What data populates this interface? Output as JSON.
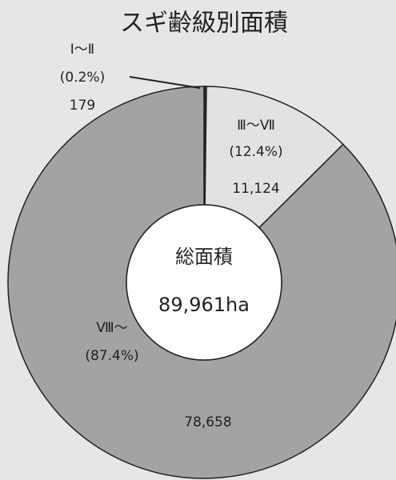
{
  "chart_data": {
    "type": "donut",
    "title": "スギ齢級別面積",
    "categories": [
      "Ⅰ～Ⅱ",
      "Ⅲ～Ⅶ",
      "Ⅷ～"
    ],
    "values": [
      179,
      11124,
      78658
    ],
    "value_labels": [
      "179",
      "11,124",
      "78,658"
    ],
    "percent_labels": [
      "(0.2%)",
      "(12.4%)",
      "(87.4%)"
    ],
    "colors": [
      "#2a2a2a",
      "#e2e2e2",
      "#a3a3a3"
    ],
    "center_title": "総面積",
    "center_value": "89,961ha"
  }
}
